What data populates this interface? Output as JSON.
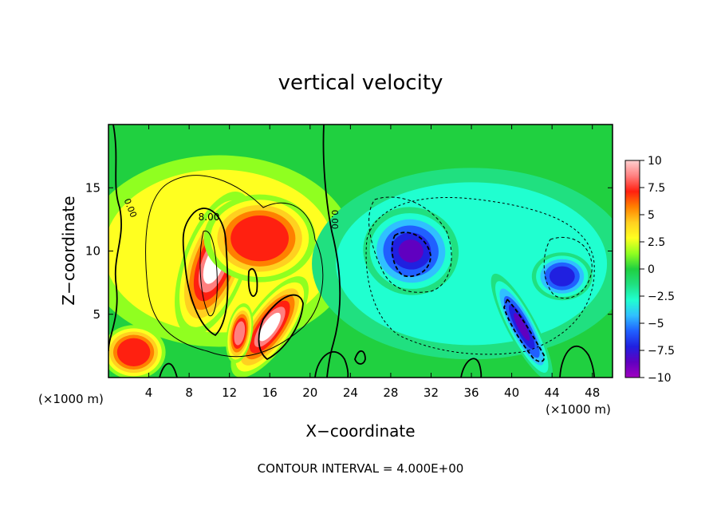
{
  "chart_data": {
    "type": "heatmap",
    "title": "vertical velocity",
    "xlabel": "X−coordinate",
    "ylabel": "Z−coordinate",
    "x_unit_label": "(×1000 m)",
    "y_unit_label": "(×1000 m)",
    "xlim": [
      0,
      50
    ],
    "ylim": [
      0,
      20
    ],
    "x_ticks": [
      4,
      8,
      12,
      16,
      20,
      24,
      28,
      32,
      36,
      40,
      44,
      48
    ],
    "y_ticks": [
      5,
      10,
      15
    ],
    "colorbar": {
      "range": [
        -10,
        10
      ],
      "ticks": [
        "10",
        "7.5",
        "5",
        "2.5",
        "0",
        "−2.5",
        "−5",
        "−7.5",
        "−10"
      ],
      "colors": [
        "#ffd0d0",
        "#ff8080",
        "#ff2010",
        "#ff8000",
        "#ffd020",
        "#ffff20",
        "#90ff20",
        "#20d040",
        "#20e080",
        "#20ffd0",
        "#30c0ff",
        "#2060ff",
        "#2020e0",
        "#6000c0",
        "#a000c0"
      ]
    },
    "contour_label": "8.00",
    "contour_zero_labels": [
      "0.00",
      "0.00"
    ],
    "footer": "CONTOUR INTERVAL =  4.000E+00",
    "features": [
      {
        "sign": "positive",
        "x": 10.5,
        "z": 9.0,
        "peak": 14
      },
      {
        "sign": "positive",
        "x": 16.0,
        "z": 4.0,
        "peak": 12
      },
      {
        "sign": "positive",
        "x": 13.0,
        "z": 3.5,
        "peak": 9
      },
      {
        "sign": "positive",
        "x": 2.5,
        "z": 2.0,
        "peak": 6
      },
      {
        "sign": "negative",
        "x": 30.0,
        "z": 10.0,
        "peak": -9
      },
      {
        "sign": "negative",
        "x": 41.0,
        "z": 4.0,
        "peak": -9
      },
      {
        "sign": "negative",
        "x": 45.0,
        "z": 8.0,
        "peak": -6
      }
    ]
  }
}
